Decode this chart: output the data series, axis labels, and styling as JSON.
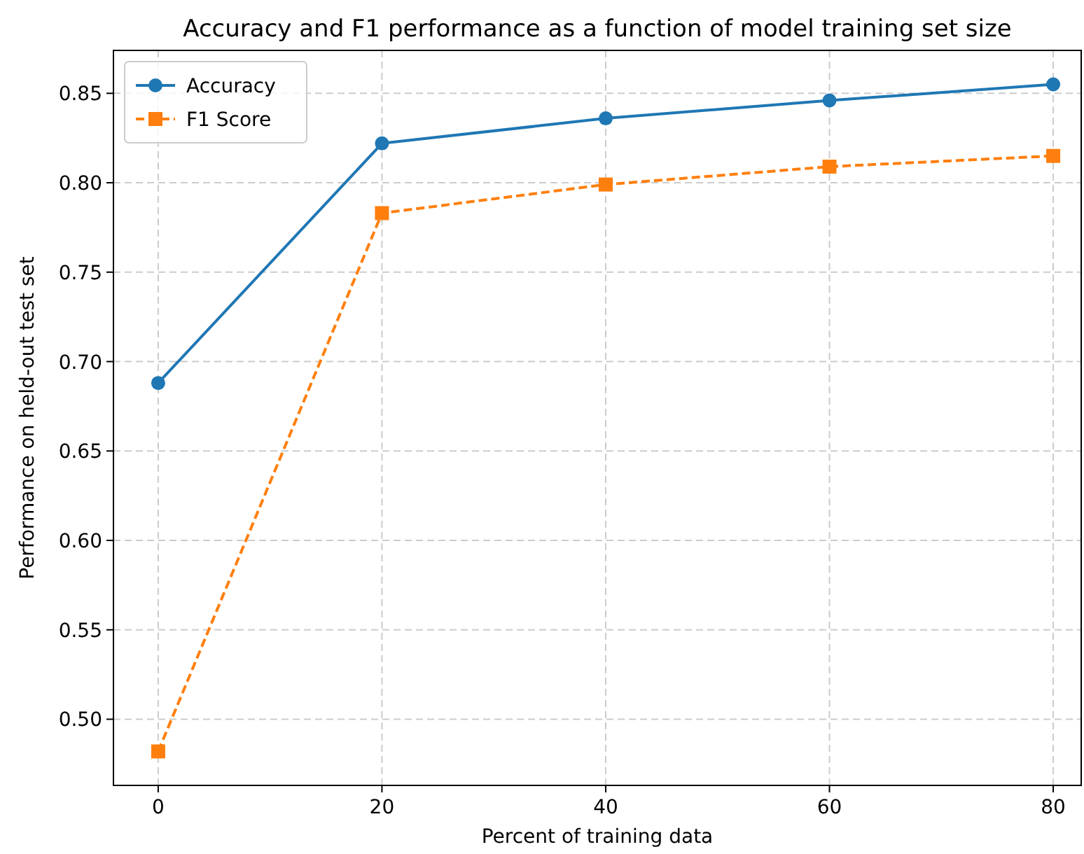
{
  "chart_data": {
    "type": "line",
    "title": "Accuracy and F1 performance as a function of model training set size",
    "xlabel": "Percent of training data",
    "ylabel": "Performance on held-out test set",
    "x": [
      0,
      20,
      40,
      60,
      80
    ],
    "series": [
      {
        "name": "Accuracy",
        "color": "#1f77b4",
        "values": [
          0.688,
          0.822,
          0.836,
          0.846,
          0.855
        ],
        "marker": "circle",
        "line_style": "solid"
      },
      {
        "name": "F1 Score",
        "color": "#ff7f0e",
        "values": [
          0.482,
          0.783,
          0.799,
          0.809,
          0.815
        ],
        "marker": "square",
        "line_style": "dashed"
      }
    ],
    "xlim": [
      -4,
      82.5
    ],
    "xticks": [
      0,
      20,
      40,
      60,
      80
    ],
    "ylim": [
      0.463,
      0.874
    ],
    "yticks": [
      {
        "value": 0.5,
        "label": "0.50"
      },
      {
        "value": 0.55,
        "label": "0.55"
      },
      {
        "value": 0.6,
        "label": "0.60"
      },
      {
        "value": 0.65,
        "label": "0.65"
      },
      {
        "value": 0.7,
        "label": "0.70"
      },
      {
        "value": 0.75,
        "label": "0.75"
      },
      {
        "value": 0.8,
        "label": "0.80"
      },
      {
        "value": 0.85,
        "label": "0.85"
      }
    ],
    "grid": true,
    "legend": "top left"
  }
}
